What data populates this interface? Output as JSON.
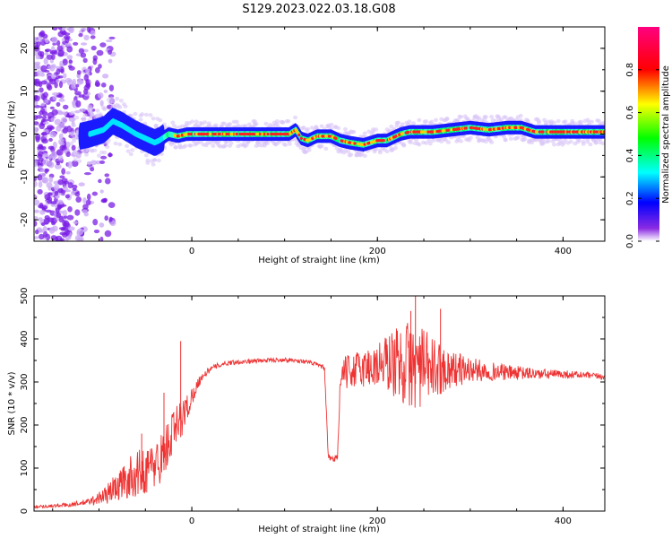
{
  "title": "S129.2023.022.03.18.G08",
  "chart_data": [
    {
      "type": "heatmap",
      "xlabel": "Height of straight line (km)",
      "ylabel": "Frequency (Hz)",
      "xlim": [
        -170,
        445
      ],
      "ylim": [
        -25,
        25
      ],
      "xticks": [
        0,
        200,
        400
      ],
      "yticks": [
        -20,
        -10,
        0,
        10,
        20
      ],
      "grid": false,
      "colorbar": {
        "label": "Normalized spectral amplitude",
        "range": [
          0,
          1
        ],
        "ticks": [
          "0.0",
          "0.2",
          "0.4",
          "0.6",
          "0.8"
        ],
        "colors": [
          "#ffffff",
          "#8a2be2",
          "#0000ff",
          "#00ffff",
          "#00ff00",
          "#ffff00",
          "#ff0000",
          "#ff0080"
        ]
      },
      "ridge": {
        "x": [
          -130,
          -110,
          -95,
          -85,
          -75,
          -60,
          -50,
          -40,
          -35,
          -25,
          -15,
          -5,
          10,
          30,
          60,
          90,
          105,
          112,
          118,
          125,
          135,
          150,
          160,
          170,
          185,
          200,
          210,
          225,
          235,
          260,
          280,
          300,
          320,
          340,
          355,
          370,
          400,
          420,
          445
        ],
        "y": [
          -1,
          0,
          1,
          3,
          2,
          0,
          -1,
          -2,
          -1.5,
          0,
          -0.5,
          0,
          0,
          0,
          0,
          0,
          0,
          1,
          -1,
          -1.5,
          -0.5,
          -0.5,
          -1.5,
          -2,
          -2.5,
          -1.5,
          -1.5,
          0,
          0.5,
          0.5,
          1,
          1.5,
          1,
          1.5,
          1.5,
          0.5,
          0.5,
          0.5,
          0.5
        ]
      }
    },
    {
      "type": "line",
      "xlabel": "Height of straight line (km)",
      "ylabel": "SNR (10 * v/v)",
      "xlim": [
        -170,
        445
      ],
      "ylim": [
        0,
        500
      ],
      "xticks": [
        0,
        200,
        400
      ],
      "yticks": [
        0,
        100,
        200,
        300,
        400,
        500
      ],
      "grid": false,
      "series": [
        {
          "color": "#ee3333",
          "x": [
            -170,
            -150,
            -130,
            -110,
            -95,
            -85,
            -75,
            -65,
            -55,
            -45,
            -38,
            -30,
            -25,
            -20,
            -15,
            -10,
            -5,
            0,
            5,
            10,
            15,
            20,
            30,
            40,
            60,
            80,
            100,
            120,
            130,
            140,
            143,
            147,
            152,
            157,
            160,
            163,
            170,
            180,
            200,
            210,
            220,
            230,
            240,
            250,
            260,
            270,
            280,
            300,
            320,
            340,
            360,
            380,
            400,
            420,
            445
          ],
          "y": [
            10,
            12,
            15,
            22,
            35,
            50,
            65,
            80,
            90,
            100,
            110,
            135,
            160,
            180,
            200,
            220,
            240,
            265,
            290,
            310,
            320,
            330,
            340,
            345,
            348,
            350,
            352,
            348,
            344,
            336,
            330,
            125,
            118,
            128,
            300,
            320,
            325,
            330,
            338,
            345,
            345,
            342,
            336,
            334,
            330,
            330,
            330,
            328,
            325,
            322,
            320,
            318,
            318,
            316,
            312
          ],
          "noise": [
            3,
            4,
            5,
            8,
            20,
            30,
            40,
            50,
            55,
            55,
            60,
            55,
            60,
            60,
            50,
            45,
            35,
            22,
            14,
            10,
            8,
            7,
            6,
            6,
            5,
            5,
            5,
            5,
            5,
            5,
            6,
            8,
            8,
            8,
            25,
            35,
            40,
            45,
            55,
            70,
            85,
            100,
            105,
            90,
            75,
            55,
            45,
            30,
            22,
            18,
            15,
            12,
            10,
            8,
            7
          ],
          "spikes": [
            {
              "x": -54,
              "y": 180
            },
            {
              "x": -30,
              "y": 275
            },
            {
              "x": -12,
              "y": 395
            },
            {
              "x": 241,
              "y": 500
            },
            {
              "x": 268,
              "y": 470
            },
            {
              "x": 236,
              "y": 465
            }
          ]
        }
      ]
    }
  ]
}
